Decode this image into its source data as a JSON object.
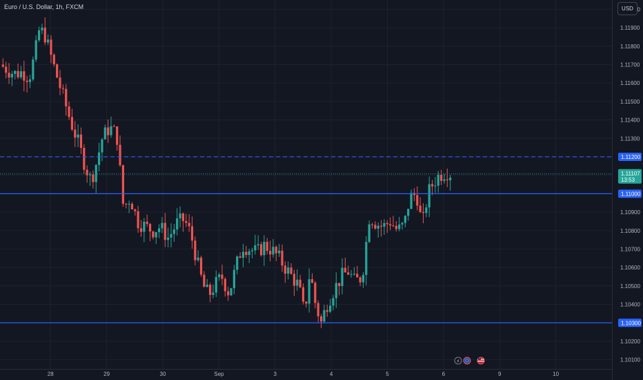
{
  "header": {
    "symbol": "Euro / U.S. Dollar, 1h, FXCM",
    "currency_button": "USD"
  },
  "colors": {
    "background": "#131722",
    "up": "#26a69a",
    "down": "#ef5350",
    "level": "#2962ff",
    "grid": "#1e222d"
  },
  "chart_data": {
    "type": "candlestick",
    "y_axis": {
      "min": 1.1005,
      "max": 1.1205,
      "ticks": [
        "1.10100",
        "1.10200",
        "1.10300",
        "1.10400",
        "1.10500",
        "1.10600",
        "1.10700",
        "1.10800",
        "1.10900",
        "1.11000",
        "1.11100",
        "1.11200",
        "1.11300",
        "1.11400",
        "1.11500",
        "1.11600",
        "1.11700",
        "1.11800",
        "1.11900",
        "1.12000"
      ]
    },
    "x_axis": {
      "min": 27.1,
      "max": 38.0,
      "labels": [
        {
          "t": 28,
          "text": "28"
        },
        {
          "t": 29,
          "text": "29"
        },
        {
          "t": 30,
          "text": "30"
        },
        {
          "t": 31,
          "text": "Sep"
        },
        {
          "t": 32,
          "text": "3"
        },
        {
          "t": 33,
          "text": "4"
        },
        {
          "t": 34,
          "text": "5"
        },
        {
          "t": 35,
          "text": "6"
        },
        {
          "t": 36,
          "text": "9"
        },
        {
          "t": 37,
          "text": "10"
        }
      ]
    },
    "horizontal_levels": [
      {
        "price": 1.112,
        "label": "1.11200",
        "style": "dashed"
      },
      {
        "price": 1.11,
        "label": "1.11000",
        "style": "solid"
      },
      {
        "price": 1.103,
        "label": "1.10300",
        "style": "solid"
      }
    ],
    "last_price": {
      "price": 1.11107,
      "label": "1.11107",
      "countdown": "13:53"
    },
    "close_path": [
      [
        27.1,
        1.117
      ],
      [
        27.2,
        1.1168
      ],
      [
        27.35,
        1.1165
      ],
      [
        27.5,
        1.1166
      ],
      [
        27.62,
        1.1163
      ],
      [
        27.72,
        1.1175
      ],
      [
        27.8,
        1.1189
      ],
      [
        27.9,
        1.1186
      ],
      [
        28.05,
        1.117
      ],
      [
        28.2,
        1.1155
      ],
      [
        28.35,
        1.114
      ],
      [
        28.5,
        1.1127
      ],
      [
        28.62,
        1.1115
      ],
      [
        28.72,
        1.1107
      ],
      [
        28.82,
        1.1117
      ],
      [
        28.92,
        1.113
      ],
      [
        29.05,
        1.1136
      ],
      [
        29.18,
        1.1132
      ],
      [
        29.3,
        1.1092
      ],
      [
        29.42,
        1.1098
      ],
      [
        29.55,
        1.1085
      ],
      [
        29.7,
        1.1082
      ],
      [
        29.82,
        1.108
      ],
      [
        29.95,
        1.1082
      ],
      [
        30.1,
        1.1076
      ],
      [
        30.25,
        1.1084
      ],
      [
        30.38,
        1.1086
      ],
      [
        30.5,
        1.1078
      ],
      [
        30.62,
        1.1062
      ],
      [
        30.72,
        1.105
      ],
      [
        30.82,
        1.1045
      ],
      [
        30.92,
        1.105
      ],
      [
        31.05,
        1.1055
      ],
      [
        31.18,
        1.1046
      ],
      [
        31.3,
        1.106
      ],
      [
        31.42,
        1.1072
      ],
      [
        31.55,
        1.107
      ],
      [
        31.68,
        1.1068
      ],
      [
        31.8,
        1.1072
      ],
      [
        31.92,
        1.107
      ],
      [
        32.05,
        1.1066
      ],
      [
        32.18,
        1.106
      ],
      [
        32.3,
        1.1055
      ],
      [
        32.42,
        1.105
      ],
      [
        32.52,
        1.1035
      ],
      [
        32.62,
        1.1058
      ],
      [
        32.72,
        1.104
      ],
      [
        32.82,
        1.103
      ],
      [
        32.92,
        1.104
      ],
      [
        33.05,
        1.1048
      ],
      [
        33.18,
        1.1055
      ],
      [
        33.3,
        1.1058
      ],
      [
        33.42,
        1.1052
      ],
      [
        33.55,
        1.1055
      ],
      [
        33.68,
        1.1088
      ],
      [
        33.8,
        1.1084
      ],
      [
        33.92,
        1.1082
      ],
      [
        34.05,
        1.1085
      ],
      [
        34.18,
        1.108
      ],
      [
        34.3,
        1.1083
      ],
      [
        34.4,
        1.1098
      ],
      [
        34.52,
        1.11
      ],
      [
        34.62,
        1.1082
      ],
      [
        34.72,
        1.11
      ],
      [
        34.82,
        1.1106
      ],
      [
        34.92,
        1.111
      ],
      [
        35.05,
        1.1112
      ],
      [
        35.12,
        1.1111
      ]
    ]
  }
}
